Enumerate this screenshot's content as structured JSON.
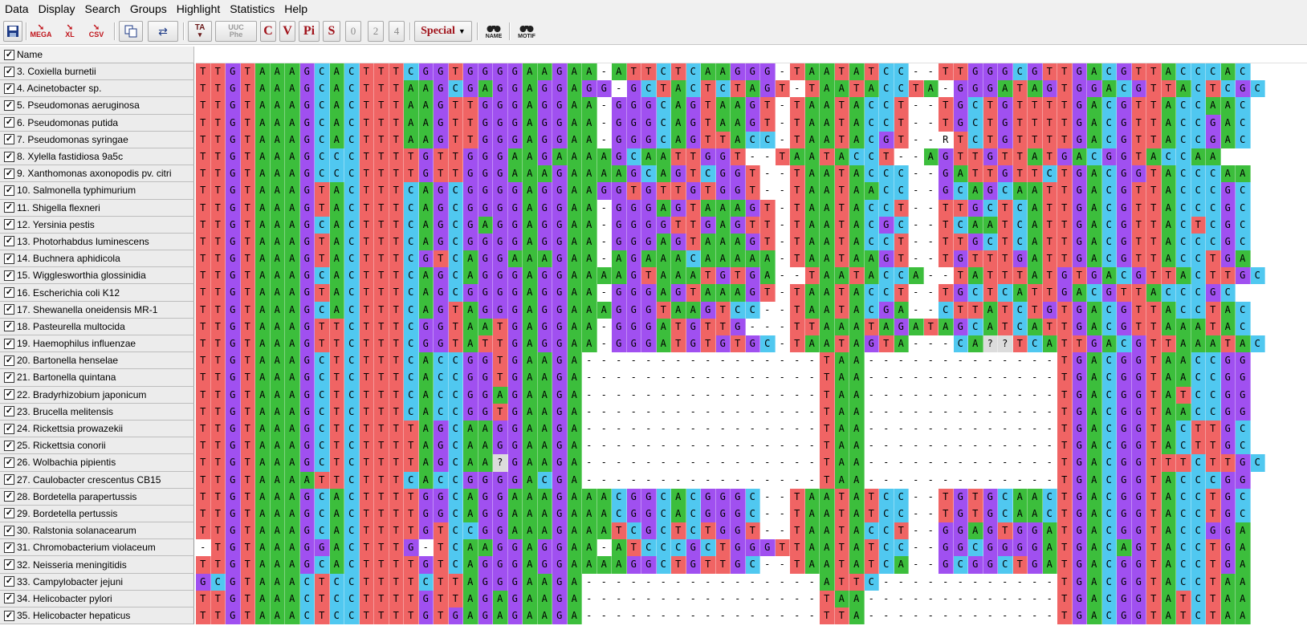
{
  "menu": [
    "Data",
    "Display",
    "Search",
    "Groups",
    "Highlight",
    "Statistics",
    "Help"
  ],
  "toolbar": {
    "save": "save-icon",
    "mega": "MEGA",
    "xl": "XL",
    "csv": "CSV",
    "ta": "TA",
    "uuc_top": "UUC",
    "uuc_bottom": "Phe",
    "c": "C",
    "v": "V",
    "pi": "Pi",
    "s": "S",
    "n0": "0",
    "n2": "2",
    "n4": "4",
    "special": "Special",
    "name_find": "NAME",
    "motif_find": "MOTIF"
  },
  "name_header": "Name",
  "colors": {
    "T": "#f06464",
    "A": "#3cbe3c",
    "G": "#a050f0",
    "C": "#50c8f0",
    "?": "#dcdcdc"
  },
  "taxa": [
    "3. Coxiella burnetii",
    "4. Acinetobacter sp.",
    "5. Pseudomonas aeruginosa",
    "6. Pseudomonas putida",
    "7. Pseudomonas syringae",
    "8. Xylella fastidiosa 9a5c",
    "9. Xanthomonas axonopodis pv. citri",
    "10. Salmonella typhimurium",
    "11. Shigella flexneri",
    "12. Yersinia pestis",
    "13. Photorhabdus luminescens",
    "14. Buchnera aphidicola",
    "15. Wigglesworthia glossinidia",
    "16. Escherichia coli K12",
    "17. Shewanella oneidensis MR-1",
    "18. Pasteurella multocida",
    "19. Haemophilus influenzae",
    "20. Bartonella henselae",
    "21. Bartonella quintana",
    "22. Bradyrhizobium japonicum",
    "23. Brucella melitensis",
    "24. Rickettsia prowazekii",
    "25. Rickettsia conorii",
    "26. Wolbachia pipientis",
    "27. Caulobacter crescentus CB15",
    "28. Bordetella parapertussis",
    "29. Bordetella pertussis",
    "30. Ralstonia solanacearum",
    "31. Chromobacterium violaceum",
    "32. Neisseria meningitidis",
    "33. Campylobacter jejuni",
    "34. Helicobacter pylori",
    "35. Helicobacter hepaticus"
  ],
  "sequences": [
    "TTGTAAAGCACTTTCGGTGGGGAAGAA-ATTCTCAAGGG-TAATATCC--TTGGGCGTTGACGTTACCCAC",
    "TTGTAAAGCACTTTAAGCGAGGAGGAGG-GCTACTCTAGT-TAATACCTA-GGGATAGTGGACGTTACTCGC",
    "TTGTAAAGCACTTTAAGTTGGGAGGAA-GGGCAGTAAGT-TAATACCT--TGCTGTTTTGACGTTACCAAC",
    "TTGTAAAGCACTTTAAGTTGGGAGGAA-GGGCAGTAAGT-TAATACCT--TGCTGTTTTGACGTTACCGAC",
    "TTGTAAAGCACTTTAAGTTGGGAGGAA-GGGCAGTTACC-TAATACGT--RTCTGTTTTGACGTTACCGAC",
    "TTGTAAAGCCCTTTTGTTGGGAAGAAAAGCAATTGGT--TAATACCT--AGTTGTTATGACGGTACCAA",
    "TTGTAAAGCCCTTTTGTTGGGAAAGAAAAGCAGTCGGT--TAATACCC--GATTGTTCTGACGGTACCCAA",
    "TTGTAAAGTACTTTCAGCGGGGAGGAAGGTGTTGTGGT--TAATAACC--GCAGCAATTGACGTTACCCGC",
    "TTGTAAAGTACTTTCAGCGGGGAGGAA-GGGAGTAAAGT-TAATACCT--TTGCTCATTGACGTTACCCGC",
    "TTGTAAAGCACTTTCAGCGAGGAGGAA-GGGGTTGAGTT-TAATACGC--TCAATCATTGACGTTACTCGC",
    "TTGTAAAGTACTTTCAGCGGGGAGGAA-GGGAGTAAAGT-TAATACCT--TTGCTCATTGACGTTACCCGC",
    "TTGTAAAGTACTTTCGTCAGGAAAGAA-AGAAACAAAAA-TAATAAGT--TGTTTGATTGACGTTACCTGA",
    "TTGTAAAGCACTTTCAGCAGGGAGGAAAAGTAAATGTGA--TAATACCA--TATTTATGTGACGTTACTTGC",
    "TTGTAAAGTACTTTCAGCGGGGAGGAA-GGGAGTAAAGT-TAATACCT--TGCTCATTGACGTTACCCGC",
    "TTGTAAAGCACTTTCAGTAGGGAGGAAAGGGTAAGTCC--TAATACGA--CTTATCTGTGACGTTACCTAC",
    "TTGTAAAGTTCTTTCGGTAATGAGGAA-GGGATGTTG---TTAAATAGATAGCATCATTGACGTTAAATAC",
    "TTGTAAAGTTCTTTCGGTATTGAGGAA-GGGATGTGTGC-TAATAGTA---CA??TCATTGACGTTAAATAC",
    "TTGTAAAGCTCTTTCACCGGTGAAGA----------------TAA-------------TGACGGTAACCGG",
    "TTGTAAAGCTCTTTCACCGGTGAAGA----------------TAA-------------TGACGGTAACCGG",
    "TTGTAAAGCTCTTTCACCGGAGAAGA----------------TAA-------------TGACGGTATCCGG",
    "TTGTAAAGCTCTTTCACCGGTGAAGA----------------TAA-------------TGACGGTAACCGG",
    "TTGTAAAGCTCTTTTAGCAAGGAAGA----------------TAA-------------TGACGGTACTTGC",
    "TTGTAAAGCTCTTTTAGCAAGGAAGA----------------TAA-------------TGACGGTACTTGC",
    "TTGTAAAGCTCTTTTAGCAA?GAAGA----------------TAA-------------TGACGGTTTCTTGC",
    "TTGTAAAATTCTTTCACCGGGGACGA----------------TAA-------------TGACGGTACCCGG",
    "TTGTAAAGCACTTTTGGCAGGAAAGAAACGGCACGGGC--TAATATCC--TGTGCAACTGACGGTACCTGC",
    "TTGTAAAGCACTTTTGGCAGGAAAGAAACGGCACGGGC--TAATATCC--TGTGCAACTGACGGTACCTGC",
    "TTGTAAAGCACTTTTGTCCGGAAAGAAATCGCTCTGGT--TAATACCT--GGAGTGGATGACGGTACCGGA",
    "-TGTAAAGGACTTTG-TCAAGGAGGAA-ATCCCGCTGGGTTAATATCC--GGCGGGGATGACAGTACCTGA",
    "TTGTAAAGCACTTTTGTCAGGGAGGAAAAGGCTGTTGC--TAATATCA--GCGGCTGATGACGGTACCTGA",
    "GCGTAAACTCCTTTTCTTAGGGAAGA----------------ATTC------------TGACGGTACCTAA",
    "TTGTAAACTCCTTTTGTTAGAGAAGA----------------TAA-------------TGACGGTATCTAA",
    "TTGTAAACTCCTTTTGTGAGAGAAGA----------------TTA-------------TGACGGTATCTAA"
  ]
}
